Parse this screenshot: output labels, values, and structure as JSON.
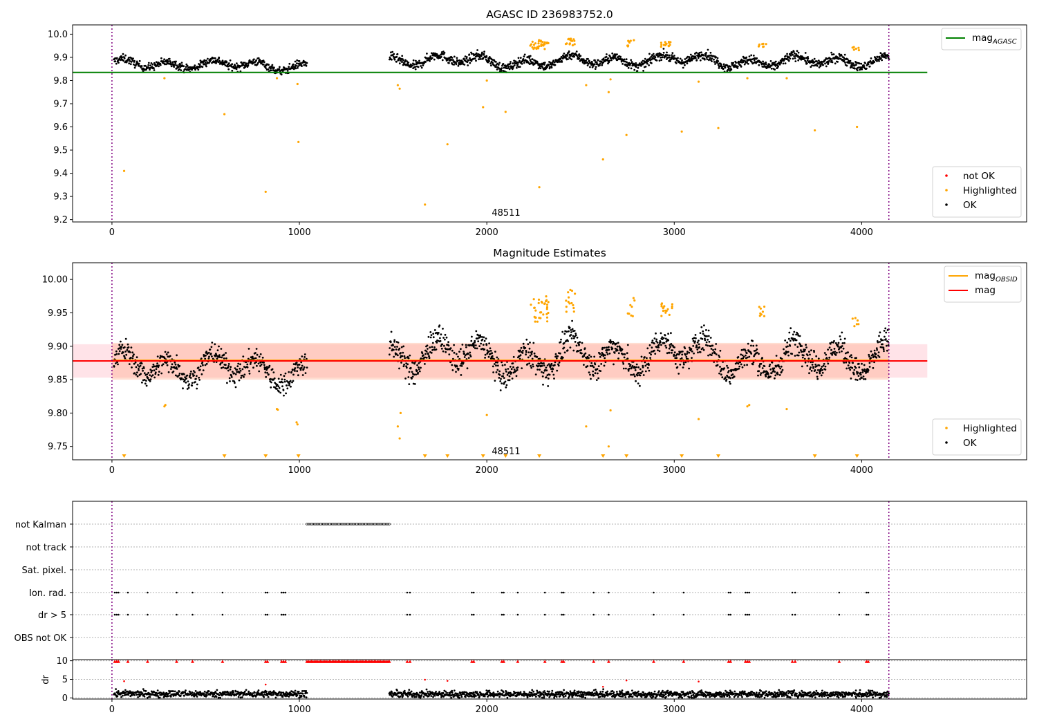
{
  "colors": {
    "ok": "#000000",
    "highlighted": "#ffa500",
    "not_ok": "#ff0000",
    "agasc_line": "#008000",
    "obsid_line": "#ffa500",
    "mag_line": "#ff0000",
    "band_outer": "#ffc0cb",
    "band_inner": "#ffa07a",
    "obs_marker": "#800080"
  },
  "chart_data": [
    {
      "type": "scatter",
      "title": "AGASC ID 236983752.0",
      "xlim": [
        -210,
        4880
      ],
      "ylim": [
        9.19,
        10.04
      ],
      "xticks": [
        0,
        1000,
        2000,
        3000,
        4000
      ],
      "yticks": [
        9.2,
        9.3,
        9.4,
        9.5,
        9.6,
        9.7,
        9.8,
        9.9,
        10.0
      ],
      "ytick_labels": [
        "9.2",
        "9.3",
        "9.4",
        "9.5",
        "9.6",
        "9.7",
        "9.8",
        "9.9",
        "10.0"
      ],
      "grid": false,
      "obs_boundaries": [
        0,
        4145
      ],
      "obsid_label": {
        "text": "48511",
        "x": 2075
      },
      "lines": [
        {
          "name": "mag_AGASC",
          "y": 9.835,
          "x": [
            -210,
            4350
          ],
          "color": "#008000"
        }
      ],
      "legends": [
        {
          "position": "top-right",
          "entries": [
            {
              "kind": "line",
              "color": "#008000",
              "label": "mag",
              "sub": "AGASC"
            }
          ]
        },
        {
          "position": "bottom-right",
          "entries": [
            {
              "kind": "dot",
              "color": "#ff0000",
              "label": "not OK"
            },
            {
              "kind": "dot",
              "color": "#ffa500",
              "label": "Highlighted"
            },
            {
              "kind": "dot",
              "color": "#000000",
              "label": "OK"
            }
          ]
        }
      ],
      "series": [
        {
          "name": "OK",
          "color": "#000000",
          "segments": [
            {
              "x0": 10,
              "x1": 1040,
              "n": 480,
              "base": 9.868,
              "amp": 0.028,
              "spread": 0.016
            },
            {
              "x0": 1480,
              "x1": 4145,
              "n": 1320,
              "base": 9.885,
              "amp": 0.035,
              "spread": 0.018
            }
          ]
        },
        {
          "name": "Highlighted",
          "color": "#ffa500",
          "points": [
            [
              65,
              9.41
            ],
            [
              600,
              9.655
            ],
            [
              820,
              9.32
            ],
            [
              995,
              9.535
            ],
            [
              1525,
              9.78
            ],
            [
              1535,
              9.765
            ],
            [
              1670,
              9.265
            ],
            [
              1790,
              9.525
            ],
            [
              1980,
              9.685
            ],
            [
              2100,
              9.665
            ],
            [
              2280,
              9.34
            ],
            [
              2530,
              9.78
            ],
            [
              2620,
              9.46
            ],
            [
              2650,
              9.75
            ],
            [
              2660,
              9.805
            ],
            [
              2745,
              9.565
            ],
            [
              3040,
              9.58
            ],
            [
              3130,
              9.795
            ],
            [
              3235,
              9.595
            ],
            [
              3750,
              9.585
            ],
            [
              3975,
              9.6
            ],
            [
              280,
              9.81
            ],
            [
              880,
              9.81
            ],
            [
              990,
              9.785
            ],
            [
              2000,
              9.8
            ],
            [
              3390,
              9.81
            ],
            [
              3600,
              9.81
            ]
          ],
          "clusters": [
            {
              "x0": 2230,
              "x1": 2330,
              "n": 32,
              "y0": 9.935,
              "y1": 9.975
            },
            {
              "x0": 2420,
              "x1": 2470,
              "n": 14,
              "y0": 9.95,
              "y1": 9.985
            },
            {
              "x0": 2750,
              "x1": 2790,
              "n": 8,
              "y0": 9.945,
              "y1": 9.975
            },
            {
              "x0": 2930,
              "x1": 2990,
              "n": 16,
              "y0": 9.945,
              "y1": 9.97
            },
            {
              "x0": 3450,
              "x1": 3490,
              "n": 8,
              "y0": 9.945,
              "y1": 9.96
            },
            {
              "x0": 3950,
              "x1": 3990,
              "n": 6,
              "y0": 9.93,
              "y1": 9.945
            }
          ]
        }
      ]
    },
    {
      "type": "scatter",
      "title": "Magnitude Estimates",
      "xlim": [
        -210,
        4880
      ],
      "ylim": [
        9.73,
        10.025
      ],
      "xticks": [
        0,
        1000,
        2000,
        3000,
        4000
      ],
      "yticks": [
        9.75,
        9.8,
        9.85,
        9.9,
        9.95,
        10.0
      ],
      "ytick_labels": [
        "9.75",
        "9.80",
        "9.85",
        "9.90",
        "9.95",
        "10.00"
      ],
      "grid": false,
      "obs_boundaries": [
        0,
        4145
      ],
      "obsid_label": {
        "text": "48511",
        "x": 2075
      },
      "bands": [
        {
          "y0": 9.853,
          "y1": 9.903,
          "x0": -210,
          "x1": 4350,
          "color": "#ffc0cb",
          "opacity": 0.45
        },
        {
          "y0": 9.85,
          "y1": 9.905,
          "x0": 0,
          "x1": 4145,
          "color": "#ffa07a",
          "opacity": 0.35
        }
      ],
      "lines": [
        {
          "name": "mag_OBSID",
          "y": 9.879,
          "x": [
            0,
            4145
          ],
          "color": "#ffa500"
        },
        {
          "name": "mag",
          "y": 9.878,
          "x": [
            -210,
            4350
          ],
          "color": "#ff0000"
        }
      ],
      "out_of_range_markers": {
        "color": "#ffa500",
        "y": 9.734,
        "x": [
          65,
          600,
          820,
          995,
          1670,
          1790,
          1980,
          2100,
          2280,
          2620,
          2745,
          3040,
          3235,
          3750,
          3975
        ]
      },
      "legends": [
        {
          "position": "top-right",
          "entries": [
            {
              "kind": "line",
              "color": "#ffa500",
              "label": "mag",
              "sub": "OBSID"
            },
            {
              "kind": "line",
              "color": "#ff0000",
              "label": "mag"
            }
          ]
        },
        {
          "position": "bottom-right",
          "entries": [
            {
              "kind": "dot",
              "color": "#ffa500",
              "label": "Highlighted"
            },
            {
              "kind": "dot",
              "color": "#000000",
              "label": "OK"
            }
          ]
        }
      ],
      "series": [
        {
          "name": "OK",
          "color": "#000000",
          "segments": [
            {
              "x0": 10,
              "x1": 1040,
              "n": 480,
              "base": 9.868,
              "amp": 0.028,
              "spread": 0.016
            },
            {
              "x0": 1480,
              "x1": 4145,
              "n": 1320,
              "base": 9.885,
              "amp": 0.035,
              "spread": 0.018
            }
          ]
        },
        {
          "name": "Highlighted",
          "color": "#ffa500",
          "points": [
            [
              280,
              9.81
            ],
            [
              285,
              9.812
            ],
            [
              880,
              9.806
            ],
            [
              885,
              9.805
            ],
            [
              985,
              9.786
            ],
            [
              990,
              9.783
            ],
            [
              1525,
              9.78
            ],
            [
              1535,
              9.762
            ],
            [
              1540,
              9.8
            ],
            [
              2000,
              9.797
            ],
            [
              2530,
              9.78
            ],
            [
              2650,
              9.75
            ],
            [
              2660,
              9.804
            ],
            [
              3130,
              9.791
            ],
            [
              3390,
              9.81
            ],
            [
              3400,
              9.812
            ],
            [
              3600,
              9.806
            ]
          ],
          "clusters": [
            {
              "x0": 2230,
              "x1": 2330,
              "n": 32,
              "y0": 9.935,
              "y1": 9.975
            },
            {
              "x0": 2420,
              "x1": 2470,
              "n": 14,
              "y0": 9.95,
              "y1": 9.985
            },
            {
              "x0": 2750,
              "x1": 2790,
              "n": 8,
              "y0": 9.945,
              "y1": 9.975
            },
            {
              "x0": 2930,
              "x1": 2990,
              "n": 16,
              "y0": 9.945,
              "y1": 9.97
            },
            {
              "x0": 3450,
              "x1": 3490,
              "n": 8,
              "y0": 9.945,
              "y1": 9.96
            },
            {
              "x0": 3950,
              "x1": 3990,
              "n": 6,
              "y0": 9.93,
              "y1": 9.945
            }
          ]
        }
      ]
    },
    {
      "type": "scatter",
      "title": "",
      "xlim": [
        -210,
        4880
      ],
      "categories": [
        "not Kalman",
        "not track",
        "Sat. pixel.",
        "Ion. rad.",
        "dr > 5",
        "OBS not OK"
      ],
      "flags": {
        "not Kalman": {
          "range": [
            1040,
            1480
          ],
          "step": 8
        },
        "not track": [],
        "Sat. pixel.": [],
        "Ion. rad.": [
          15,
          25,
          35,
          85,
          190,
          345,
          430,
          590,
          820,
          830,
          905,
          915,
          925,
          1575,
          1590,
          1920,
          1930,
          2080,
          2090,
          2165,
          2310,
          2400,
          2410,
          2570,
          2650,
          2890,
          3050,
          3290,
          3300,
          3380,
          3390,
          3400,
          3630,
          3645,
          3880,
          4025,
          4035
        ],
        "dr > 5": [
          15,
          25,
          35,
          85,
          190,
          345,
          430,
          590,
          820,
          830,
          905,
          915,
          925,
          1575,
          1590,
          1920,
          1930,
          2080,
          2090,
          2165,
          2310,
          2400,
          2410,
          2570,
          2650,
          2890,
          3050,
          3290,
          3300,
          3380,
          3390,
          3400,
          3630,
          3645,
          3880,
          4025,
          4035
        ],
        "OBS not OK": []
      },
      "obs_boundaries": [
        0,
        4145
      ]
    },
    {
      "type": "scatter",
      "title": "",
      "ylabel": "dr",
      "xlim": [
        -210,
        4880
      ],
      "ylim": [
        -0.3,
        10.3
      ],
      "xticks": [
        0,
        1000,
        2000,
        3000,
        4000
      ],
      "yticks": [
        0,
        5,
        10
      ],
      "ytick_labels": [
        "0",
        "5",
        "10"
      ],
      "grid": "y",
      "obs_boundaries": [
        0,
        4145
      ],
      "series": [
        {
          "name": "dr",
          "color": "#000000",
          "segments": [
            {
              "x0": 10,
              "x1": 1040,
              "n": 480,
              "base": 1.1,
              "spread": 0.45
            },
            {
              "x0": 1480,
              "x1": 4145,
              "n": 1320,
              "base": 1.0,
              "spread": 0.45
            }
          ]
        },
        {
          "name": "dr_clipped",
          "color": "#ff0000",
          "marker": "triangle",
          "y": 9.8,
          "x": [
            15,
            25,
            35,
            85,
            190,
            345,
            430,
            590,
            820,
            830,
            905,
            915,
            925,
            1575,
            1590,
            1920,
            1930,
            2080,
            2090,
            2165,
            2310,
            2400,
            2410,
            2570,
            2650,
            2890,
            3050,
            3290,
            3300,
            3380,
            3390,
            3400,
            3630,
            3645,
            3880,
            4025,
            4035
          ],
          "range": [
            1040,
            1480
          ],
          "step": 8
        },
        {
          "name": "dr_moderate",
          "color": "#ff0000",
          "points": [
            [
              65,
              4.5
            ],
            [
              820,
              3.6
            ],
            [
              1670,
              4.9
            ],
            [
              1790,
              4.6
            ],
            [
              2620,
              3.0
            ],
            [
              2745,
              4.7
            ],
            [
              3130,
              4.4
            ]
          ]
        }
      ]
    }
  ]
}
